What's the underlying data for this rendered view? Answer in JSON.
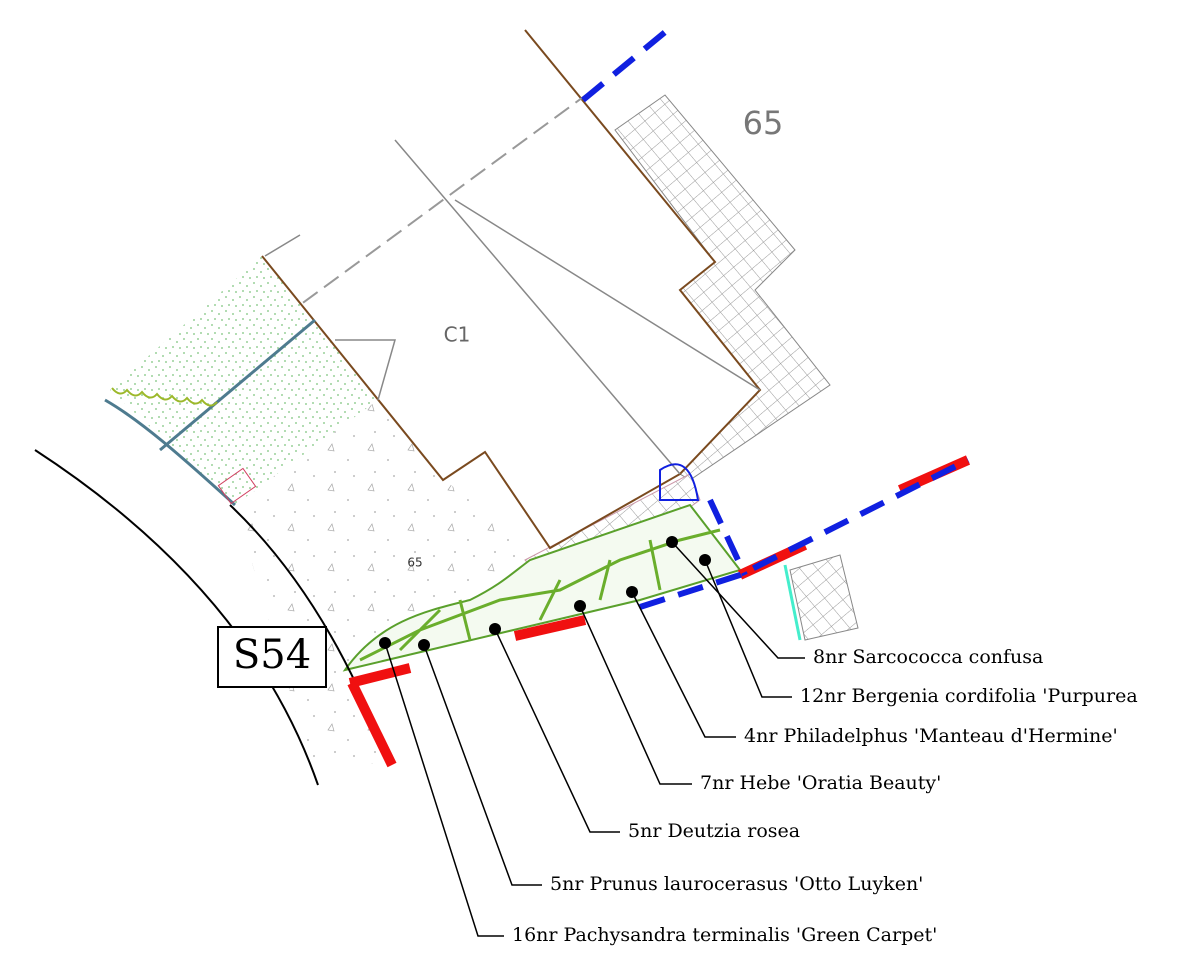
{
  "labels": {
    "plot_number": "65",
    "building": "C1",
    "level": "65",
    "section": "S54"
  },
  "plants": [
    {
      "label": "8nr Sarcococca confusa"
    },
    {
      "label": "12nr Bergenia cordifolia 'Purpurea"
    },
    {
      "label": "4nr Philadelphus 'Manteau d'Hermine'"
    },
    {
      "label": "7nr Hebe 'Oratia Beauty'"
    },
    {
      "label": "5nr Deutzia rosea"
    },
    {
      "label": "5nr Prunus laurocerasus 'Otto Luyken'"
    },
    {
      "label": "16nr Pachysandra terminalis 'Green Carpet'"
    }
  ]
}
